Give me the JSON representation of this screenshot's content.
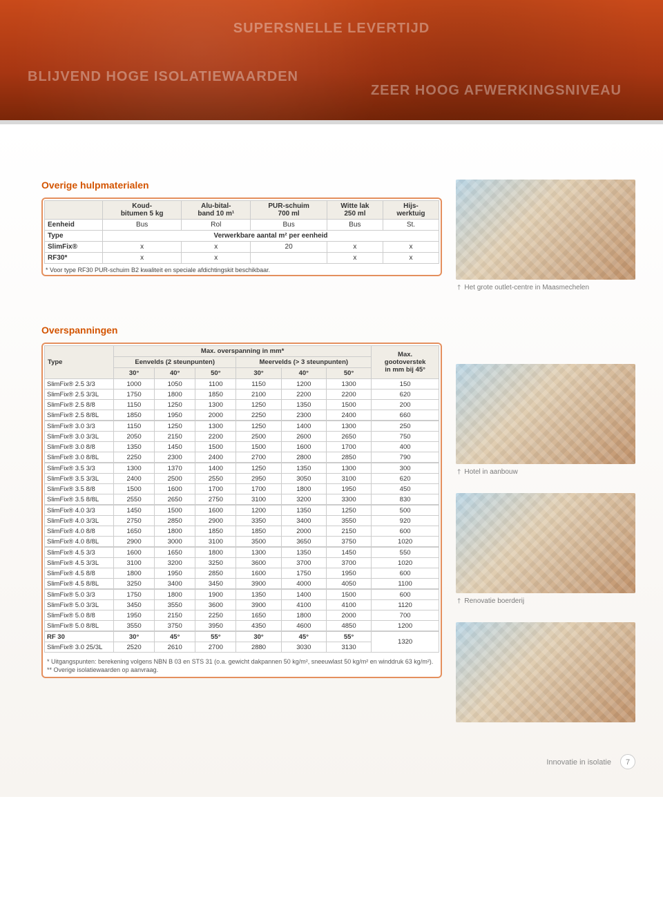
{
  "hero": {
    "line1": "SUPERSNELLE LEVERTIJD",
    "line2": "BLIJVEND HOGE ISOLATIEWAARDEN",
    "line3": "ZEER HOOG AFWERKINGSNIVEAU"
  },
  "materials": {
    "title": "Overige hulpmaterialen",
    "headers": [
      "",
      "Koud-\nbitumen 5 kg",
      "Alu-bital-\nband 10 m¹",
      "PUR-schuim\n700 ml",
      "Witte lak\n250 ml",
      "Hijs-\nwerktuig"
    ],
    "rows": [
      [
        "Eenheid",
        "Bus",
        "Rol",
        "Bus",
        "Bus",
        "St."
      ],
      [
        "Type",
        {
          "colspan": 5,
          "text": "Verwerkbare aantal m² per eenheid"
        }
      ],
      [
        "SlimFix®",
        "x",
        "x",
        "20",
        "x",
        "x"
      ],
      [
        "RF30*",
        "x",
        "x",
        "",
        "x",
        "x"
      ]
    ],
    "footnote": "*  Voor type RF30 PUR-schuim B2 kwaliteit en speciale afdichtingskit beschikbaar."
  },
  "spans": {
    "title": "Overspanningen",
    "head": {
      "type": "Type",
      "max_span": "Max. overspanning in mm*",
      "eenvelds": "Eenvelds (2 steunpunten)",
      "meervelds": "Meervelds (> 3 steunpunten)",
      "goot": "Max.\ngootoverstek\nin mm bij 45°",
      "angles": [
        "30°",
        "40°",
        "50°",
        "30°",
        "40°",
        "50°"
      ]
    },
    "groups": [
      [
        [
          "SlimFix® 2.5 3/3",
          1000,
          1050,
          1100,
          1150,
          1200,
          1300,
          150
        ],
        [
          "SlimFix® 2.5 3/3L",
          1750,
          1800,
          1850,
          2100,
          2200,
          2200,
          620
        ],
        [
          "SlimFix® 2.5 8/8",
          1150,
          1250,
          1300,
          1250,
          1350,
          1500,
          200
        ],
        [
          "SlimFix® 2.5 8/8L",
          1850,
          1950,
          2000,
          2250,
          2300,
          2400,
          660
        ]
      ],
      [
        [
          "SlimFix® 3.0 3/3",
          1150,
          1250,
          1300,
          1250,
          1400,
          1300,
          250
        ],
        [
          "SlimFix® 3.0 3/3L",
          2050,
          2150,
          2200,
          2500,
          2600,
          2650,
          750
        ],
        [
          "SlimFix® 3.0 8/8",
          1350,
          1450,
          1500,
          1500,
          1600,
          1700,
          400
        ],
        [
          "SlimFix® 3.0 8/8L",
          2250,
          2300,
          2400,
          2700,
          2800,
          2850,
          790
        ]
      ],
      [
        [
          "SlimFix® 3.5 3/3",
          1300,
          1370,
          1400,
          1250,
          1350,
          1300,
          300
        ],
        [
          "SlimFix® 3.5 3/3L",
          2400,
          2500,
          2550,
          2950,
          3050,
          3100,
          620
        ],
        [
          "SlimFix® 3.5 8/8",
          1500,
          1600,
          1700,
          1700,
          1800,
          1950,
          450
        ],
        [
          "SlimFix® 3.5 8/8L",
          2550,
          2650,
          2750,
          3100,
          3200,
          3300,
          830
        ]
      ],
      [
        [
          "SlimFix® 4.0 3/3",
          1450,
          1500,
          1600,
          1200,
          1350,
          1250,
          500
        ],
        [
          "SlimFix® 4.0 3/3L",
          2750,
          2850,
          2900,
          3350,
          3400,
          3550,
          920
        ],
        [
          "SlimFix® 4.0 8/8",
          1650,
          1800,
          1850,
          1850,
          2000,
          2150,
          600
        ],
        [
          "SlimFix® 4.0 8/8L",
          2900,
          3000,
          3100,
          3500,
          3650,
          3750,
          1020
        ]
      ],
      [
        [
          "SlimFix® 4.5 3/3",
          1600,
          1650,
          1800,
          1300,
          1350,
          1450,
          550
        ],
        [
          "SlimFix® 4.5 3/3L",
          3100,
          3200,
          3250,
          3600,
          3700,
          3700,
          1020
        ],
        [
          "SlimFix® 4.5 8/8",
          1800,
          1950,
          2850,
          1600,
          1750,
          1950,
          600
        ],
        [
          "SlimFix® 4.5 8/8L",
          3250,
          3400,
          3450,
          3900,
          4000,
          4050,
          1100
        ]
      ],
      [
        [
          "SlimFix® 5.0 3/3",
          1750,
          1800,
          1900,
          1350,
          1400,
          1500,
          600
        ],
        [
          "SlimFix® 5.0 3/3L",
          3450,
          3550,
          3600,
          3900,
          4100,
          4100,
          1120
        ],
        [
          "SlimFix® 5.0 8/8",
          1950,
          2150,
          2250,
          1650,
          1800,
          2000,
          700
        ],
        [
          "SlimFix® 5.0 8/8L",
          3550,
          3750,
          3950,
          4350,
          4600,
          4850,
          1200
        ]
      ]
    ],
    "rf30": {
      "label_rf": "RF 30",
      "label_sf": "SlimFix® 3.0 25/3L",
      "angles": [
        "30°",
        "45°",
        "55°",
        "30°",
        "45°",
        "55°"
      ],
      "values": [
        2520,
        2610,
        2700,
        2880,
        3030,
        3130,
        1320
      ]
    },
    "notes": "*   Uitgangspunten: berekening volgens NBN B 03 en STS 31 (o.a. gewicht dakpannen 50 kg/m², sneeuwlast 50 kg/m² en winddruk 63 kg/m²).\n** Overige isolatiewaarden op aanvraag."
  },
  "photos": {
    "c1": "Het grote outlet-centre in Maasmechelen",
    "c2": "Hotel in aanbouw",
    "c3": "Renovatie boerderij"
  },
  "footer": {
    "tagline": "Innovatie in isolatie",
    "page": "7"
  },
  "colors": {
    "accent": "#d35400",
    "table_border": "#e48f5d"
  }
}
